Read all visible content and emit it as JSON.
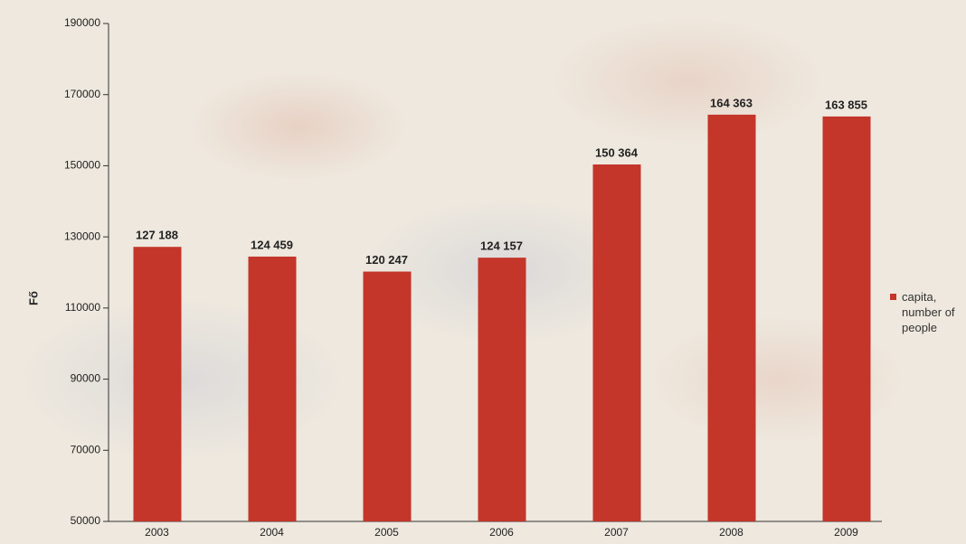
{
  "chart_data": {
    "type": "bar",
    "y_label": "Fő",
    "categories": [
      "2003",
      "2004",
      "2005",
      "2006",
      "2007",
      "2008",
      "2009"
    ],
    "series": [
      {
        "name": "capita, number of people",
        "color": "#c4352a",
        "values": [
          127188,
          124459,
          120247,
          124157,
          150364,
          164363,
          163855
        ],
        "value_labels": [
          "127 188",
          "124 459",
          "120 247",
          "124 157",
          "150 364",
          "164 363",
          "163 855"
        ]
      }
    ],
    "ylim": [
      50000,
      190000
    ],
    "yticks": [
      50000,
      70000,
      90000,
      110000,
      130000,
      150000,
      170000,
      190000
    ],
    "legend": "right"
  }
}
